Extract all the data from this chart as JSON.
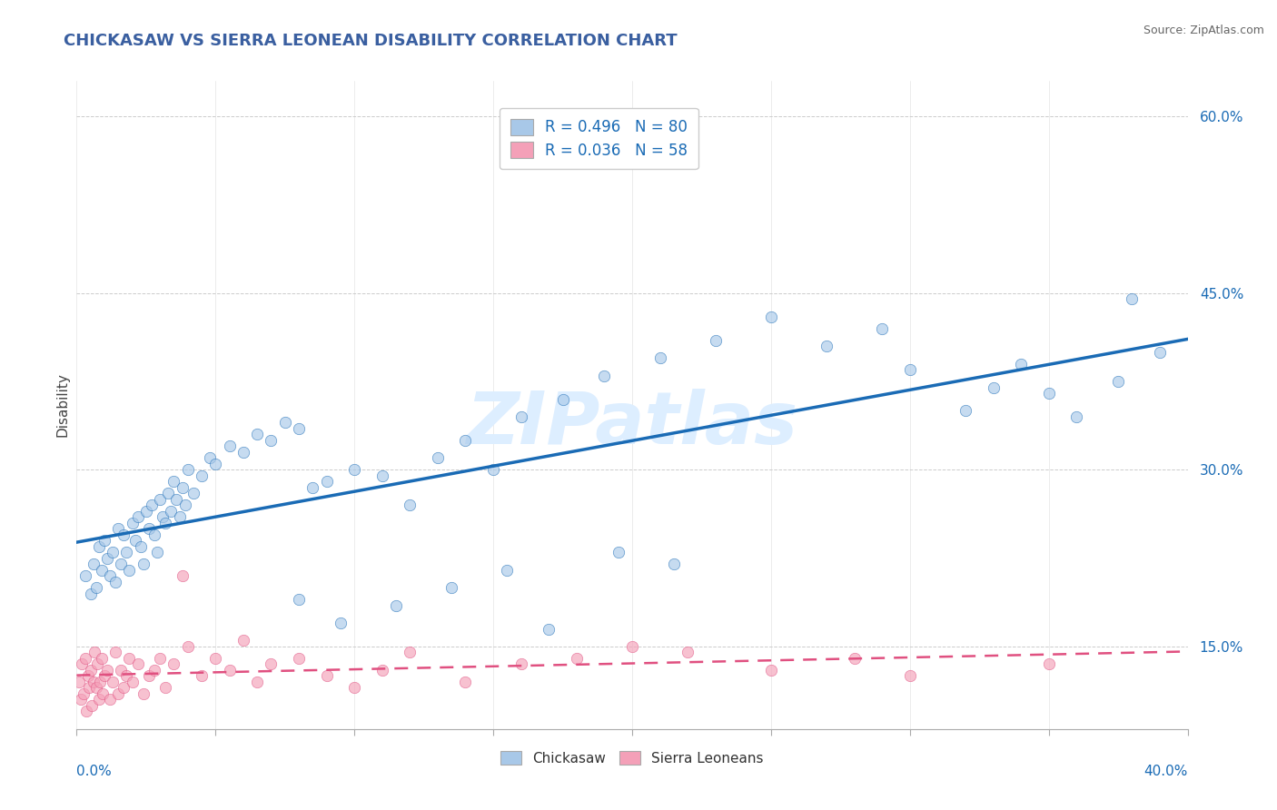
{
  "title": "CHICKASAW VS SIERRA LEONEAN DISABILITY CORRELATION CHART",
  "source": "Source: ZipAtlas.com",
  "ylabel": "Disability",
  "xlim": [
    0.0,
    40.0
  ],
  "ylim": [
    8.0,
    63.0
  ],
  "yticks": [
    15.0,
    30.0,
    45.0,
    60.0
  ],
  "legend_r1": "0.496",
  "legend_n1": "80",
  "legend_r2": "0.036",
  "legend_n2": "58",
  "blue_color": "#a8c8e8",
  "pink_color": "#f4a0b8",
  "blue_line_color": "#1a6bb5",
  "pink_line_color": "#e05080",
  "title_color": "#3a5fa0",
  "watermark": "ZIPatlas",
  "chickasaw_x": [
    0.3,
    0.5,
    0.6,
    0.7,
    0.8,
    0.9,
    1.0,
    1.1,
    1.2,
    1.3,
    1.4,
    1.5,
    1.6,
    1.7,
    1.8,
    1.9,
    2.0,
    2.1,
    2.2,
    2.3,
    2.4,
    2.5,
    2.6,
    2.7,
    2.8,
    2.9,
    3.0,
    3.1,
    3.2,
    3.3,
    3.4,
    3.5,
    3.6,
    3.7,
    3.8,
    3.9,
    4.0,
    4.2,
    4.5,
    4.8,
    5.0,
    5.5,
    6.0,
    6.5,
    7.0,
    7.5,
    8.0,
    8.5,
    9.0,
    10.0,
    11.0,
    12.0,
    13.0,
    14.0,
    15.0,
    16.0,
    17.5,
    19.0,
    21.0,
    23.0,
    25.0,
    27.0,
    29.0,
    30.0,
    32.0,
    33.0,
    34.0,
    35.0,
    36.0,
    37.5,
    39.0,
    8.0,
    9.5,
    11.5,
    13.5,
    15.5,
    17.0,
    19.5,
    21.5,
    38.0
  ],
  "chickasaw_y": [
    21.0,
    19.5,
    22.0,
    20.0,
    23.5,
    21.5,
    24.0,
    22.5,
    21.0,
    23.0,
    20.5,
    25.0,
    22.0,
    24.5,
    23.0,
    21.5,
    25.5,
    24.0,
    26.0,
    23.5,
    22.0,
    26.5,
    25.0,
    27.0,
    24.5,
    23.0,
    27.5,
    26.0,
    25.5,
    28.0,
    26.5,
    29.0,
    27.5,
    26.0,
    28.5,
    27.0,
    30.0,
    28.0,
    29.5,
    31.0,
    30.5,
    32.0,
    31.5,
    33.0,
    32.5,
    34.0,
    33.5,
    28.5,
    29.0,
    30.0,
    29.5,
    27.0,
    31.0,
    32.5,
    30.0,
    34.5,
    36.0,
    38.0,
    39.5,
    41.0,
    43.0,
    40.5,
    42.0,
    38.5,
    35.0,
    37.0,
    39.0,
    36.5,
    34.5,
    37.5,
    40.0,
    19.0,
    17.0,
    18.5,
    20.0,
    21.5,
    16.5,
    23.0,
    22.0,
    44.5
  ],
  "sierra_x": [
    0.1,
    0.15,
    0.2,
    0.25,
    0.3,
    0.35,
    0.4,
    0.45,
    0.5,
    0.55,
    0.6,
    0.65,
    0.7,
    0.75,
    0.8,
    0.85,
    0.9,
    0.95,
    1.0,
    1.1,
    1.2,
    1.3,
    1.4,
    1.5,
    1.6,
    1.7,
    1.8,
    1.9,
    2.0,
    2.2,
    2.4,
    2.6,
    2.8,
    3.0,
    3.2,
    3.5,
    4.0,
    4.5,
    5.0,
    5.5,
    6.0,
    6.5,
    7.0,
    8.0,
    9.0,
    10.0,
    11.0,
    12.0,
    14.0,
    16.0,
    18.0,
    20.0,
    22.0,
    25.0,
    28.0,
    30.0,
    35.0,
    3.8
  ],
  "sierra_y": [
    12.0,
    10.5,
    13.5,
    11.0,
    14.0,
    9.5,
    12.5,
    11.5,
    13.0,
    10.0,
    12.0,
    14.5,
    11.5,
    13.5,
    10.5,
    12.0,
    14.0,
    11.0,
    12.5,
    13.0,
    10.5,
    12.0,
    14.5,
    11.0,
    13.0,
    11.5,
    12.5,
    14.0,
    12.0,
    13.5,
    11.0,
    12.5,
    13.0,
    14.0,
    11.5,
    13.5,
    15.0,
    12.5,
    14.0,
    13.0,
    15.5,
    12.0,
    13.5,
    14.0,
    12.5,
    11.5,
    13.0,
    14.5,
    12.0,
    13.5,
    14.0,
    15.0,
    14.5,
    13.0,
    14.0,
    12.5,
    13.5,
    21.0
  ]
}
